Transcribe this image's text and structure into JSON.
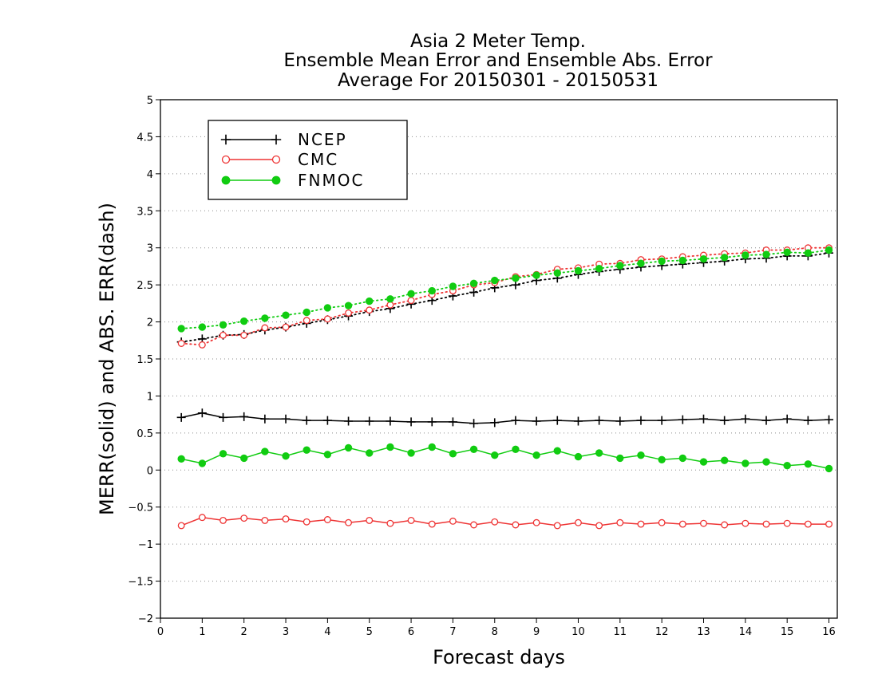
{
  "chart_data": {
    "type": "line",
    "title": [
      "Asia 2 Meter Temp.",
      "Ensemble Mean Error and Ensemble Abs. Error",
      "Average For 20150301 - 20150531"
    ],
    "xlabel": "Forecast days",
    "ylabel": "MERR(solid) and ABS. ERR(dash)",
    "xlim": [
      0,
      16.2
    ],
    "ylim": [
      -2,
      5
    ],
    "xticks": [
      0,
      1,
      2,
      3,
      4,
      5,
      6,
      7,
      8,
      9,
      10,
      11,
      12,
      13,
      14,
      15,
      16
    ],
    "xtick_labels": [
      "0",
      "1",
      "2",
      "3",
      "4",
      "5",
      "6",
      "7",
      "8",
      "9",
      "10",
      "11",
      "12",
      "13",
      "14",
      "15",
      "16"
    ],
    "yticks": [
      -2,
      -1.5,
      -1,
      -0.5,
      0,
      0.5,
      1,
      1.5,
      2,
      2.5,
      3,
      3.5,
      4,
      4.5,
      5
    ],
    "ytick_labels": [
      "−2",
      "−1.5",
      "−1",
      "−0.5",
      "0",
      "0.5",
      "1",
      "1.5",
      "2",
      "2.5",
      "3",
      "3.5",
      "4",
      "4.5",
      "5"
    ],
    "grid": "horizontal dotted",
    "legend_position": "top-left",
    "x": [
      0.5,
      1,
      1.5,
      2,
      2.5,
      3,
      3.5,
      4,
      4.5,
      5,
      5.5,
      6,
      6.5,
      7,
      7.5,
      8,
      8.5,
      9,
      9.5,
      10,
      10.5,
      11,
      11.5,
      12,
      12.5,
      13,
      13.5,
      14,
      14.5,
      15,
      15.5,
      16
    ],
    "series": [
      {
        "name": "NCEP",
        "color": "#000000",
        "marker": "plus",
        "merr": [
          0.71,
          0.77,
          0.71,
          0.72,
          0.69,
          0.69,
          0.67,
          0.67,
          0.66,
          0.66,
          0.66,
          0.65,
          0.65,
          0.65,
          0.63,
          0.64,
          0.67,
          0.66,
          0.67,
          0.66,
          0.67,
          0.66,
          0.67,
          0.67,
          0.68,
          0.69,
          0.67,
          0.69,
          0.67,
          0.69,
          0.67,
          0.68
        ],
        "abs_err": [
          1.73,
          1.77,
          1.82,
          1.83,
          1.89,
          1.93,
          1.98,
          2.03,
          2.08,
          2.14,
          2.18,
          2.24,
          2.29,
          2.35,
          2.4,
          2.46,
          2.5,
          2.56,
          2.59,
          2.64,
          2.68,
          2.71,
          2.74,
          2.76,
          2.78,
          2.8,
          2.82,
          2.85,
          2.86,
          2.89,
          2.89,
          2.93
        ]
      },
      {
        "name": "CMC",
        "color": "#ee3333",
        "marker": "open-circle",
        "merr": [
          -0.75,
          -0.64,
          -0.68,
          -0.65,
          -0.68,
          -0.66,
          -0.7,
          -0.67,
          -0.71,
          -0.68,
          -0.72,
          -0.68,
          -0.73,
          -0.69,
          -0.74,
          -0.7,
          -0.74,
          -0.71,
          -0.75,
          -0.71,
          -0.75,
          -0.71,
          -0.73,
          -0.71,
          -0.73,
          -0.72,
          -0.74,
          -0.72,
          -0.73,
          -0.72,
          -0.73,
          -0.73
        ],
        "abs_err": [
          1.71,
          1.69,
          1.82,
          1.82,
          1.92,
          1.93,
          2.02,
          2.04,
          2.12,
          2.16,
          2.23,
          2.29,
          2.37,
          2.42,
          2.5,
          2.53,
          2.61,
          2.64,
          2.71,
          2.73,
          2.78,
          2.79,
          2.84,
          2.85,
          2.88,
          2.9,
          2.92,
          2.93,
          2.97,
          2.97,
          3.0,
          3.0
        ]
      },
      {
        "name": "FNMOC",
        "color": "#11cc11",
        "marker": "filled-circle",
        "merr": [
          0.15,
          0.09,
          0.22,
          0.16,
          0.25,
          0.19,
          0.27,
          0.21,
          0.3,
          0.23,
          0.31,
          0.23,
          0.31,
          0.22,
          0.28,
          0.2,
          0.28,
          0.2,
          0.26,
          0.18,
          0.23,
          0.16,
          0.2,
          0.14,
          0.16,
          0.11,
          0.13,
          0.09,
          0.11,
          0.06,
          0.08,
          0.02
        ],
        "abs_err": [
          1.91,
          1.93,
          1.96,
          2.01,
          2.05,
          2.09,
          2.13,
          2.19,
          2.22,
          2.28,
          2.31,
          2.38,
          2.42,
          2.48,
          2.52,
          2.56,
          2.59,
          2.63,
          2.66,
          2.69,
          2.72,
          2.76,
          2.79,
          2.82,
          2.83,
          2.85,
          2.87,
          2.9,
          2.91,
          2.94,
          2.93,
          2.97
        ]
      }
    ]
  }
}
